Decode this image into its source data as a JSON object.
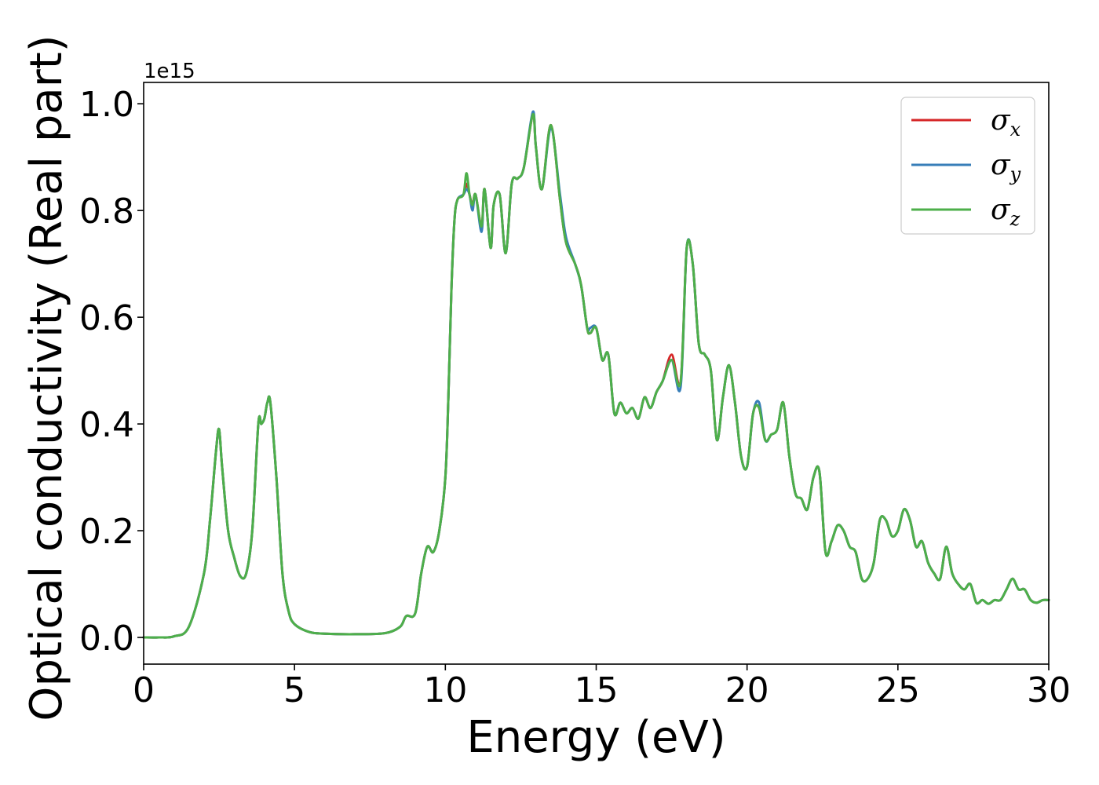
{
  "chart_data": {
    "type": "line",
    "xlabel": "Energy (eV)",
    "ylabel": "Optical conductivity (Real part)",
    "y_offset_label": "1e15",
    "xlim": [
      0,
      30
    ],
    "ylim": [
      -0.05,
      1.04
    ],
    "x_ticks": [
      0,
      5,
      10,
      15,
      20,
      25,
      30
    ],
    "x_tick_labels": [
      "0",
      "5",
      "10",
      "15",
      "20",
      "25",
      "30"
    ],
    "y_ticks": [
      0.0,
      0.2,
      0.4,
      0.6,
      0.8,
      1.0
    ],
    "y_tick_labels": [
      "0.0",
      "0.2",
      "0.4",
      "0.6",
      "0.8",
      "1.0"
    ],
    "grid": false,
    "legend_position": "top-right",
    "x": [
      0,
      0.5,
      1.0,
      1.5,
      2.0,
      2.2,
      2.4,
      2.5,
      2.6,
      2.8,
      3.0,
      3.2,
      3.4,
      3.6,
      3.8,
      3.9,
      4.0,
      4.1,
      4.2,
      4.4,
      4.6,
      4.8,
      5.0,
      5.5,
      6.0,
      7.0,
      8.0,
      8.5,
      8.7,
      9.0,
      9.2,
      9.4,
      9.6,
      9.8,
      10.0,
      10.1,
      10.2,
      10.3,
      10.4,
      10.6,
      10.7,
      10.8,
      10.9,
      11.0,
      11.2,
      11.3,
      11.5,
      11.6,
      11.8,
      12.0,
      12.2,
      12.4,
      12.6,
      12.9,
      13.0,
      13.2,
      13.5,
      13.8,
      14.0,
      14.3,
      14.5,
      14.7,
      14.8,
      15.0,
      15.2,
      15.4,
      15.6,
      15.8,
      16.0,
      16.2,
      16.4,
      16.6,
      16.8,
      17.0,
      17.2,
      17.5,
      17.8,
      18.0,
      18.2,
      18.4,
      18.6,
      18.8,
      19.0,
      19.2,
      19.4,
      19.6,
      19.8,
      20.0,
      20.2,
      20.4,
      20.6,
      20.8,
      21.0,
      21.2,
      21.4,
      21.6,
      21.8,
      22.0,
      22.2,
      22.4,
      22.6,
      22.8,
      23.0,
      23.2,
      23.4,
      23.6,
      23.8,
      24.0,
      24.2,
      24.4,
      24.6,
      24.8,
      25.0,
      25.2,
      25.4,
      25.6,
      25.8,
      26.0,
      26.2,
      26.4,
      26.6,
      26.8,
      27.0,
      27.2,
      27.4,
      27.6,
      27.8,
      28.0,
      28.2,
      28.4,
      28.6,
      28.8,
      29.0,
      29.2,
      29.4,
      29.6,
      29.8,
      30.0
    ],
    "series": [
      {
        "name": "σx",
        "color": "#d62728",
        "values": [
          0.0,
          0.0,
          0.002,
          0.02,
          0.12,
          0.22,
          0.35,
          0.39,
          0.32,
          0.2,
          0.15,
          0.115,
          0.12,
          0.2,
          0.4,
          0.4,
          0.41,
          0.44,
          0.44,
          0.3,
          0.12,
          0.05,
          0.025,
          0.01,
          0.007,
          0.006,
          0.008,
          0.02,
          0.04,
          0.045,
          0.12,
          0.17,
          0.16,
          0.2,
          0.3,
          0.45,
          0.65,
          0.78,
          0.82,
          0.83,
          0.85,
          0.83,
          0.81,
          0.83,
          0.77,
          0.84,
          0.73,
          0.81,
          0.83,
          0.72,
          0.85,
          0.86,
          0.88,
          0.98,
          0.92,
          0.84,
          0.96,
          0.82,
          0.74,
          0.7,
          0.66,
          0.58,
          0.57,
          0.58,
          0.52,
          0.53,
          0.42,
          0.44,
          0.42,
          0.43,
          0.41,
          0.45,
          0.43,
          0.46,
          0.48,
          0.53,
          0.48,
          0.73,
          0.7,
          0.55,
          0.53,
          0.5,
          0.37,
          0.45,
          0.51,
          0.44,
          0.34,
          0.32,
          0.42,
          0.43,
          0.37,
          0.38,
          0.39,
          0.44,
          0.34,
          0.27,
          0.26,
          0.24,
          0.3,
          0.31,
          0.16,
          0.18,
          0.21,
          0.2,
          0.17,
          0.16,
          0.11,
          0.11,
          0.14,
          0.22,
          0.22,
          0.19,
          0.2,
          0.24,
          0.22,
          0.17,
          0.18,
          0.14,
          0.12,
          0.11,
          0.17,
          0.12,
          0.1,
          0.09,
          0.1,
          0.065,
          0.07,
          0.063,
          0.07,
          0.07,
          0.09,
          0.11,
          0.09,
          0.09,
          0.07,
          0.065,
          0.07,
          0.07
        ]
      },
      {
        "name": "σy",
        "color": "#377eb8",
        "values": [
          0.0,
          0.0,
          0.002,
          0.02,
          0.12,
          0.22,
          0.35,
          0.39,
          0.32,
          0.2,
          0.15,
          0.115,
          0.12,
          0.2,
          0.4,
          0.4,
          0.41,
          0.44,
          0.44,
          0.3,
          0.12,
          0.05,
          0.025,
          0.01,
          0.007,
          0.006,
          0.008,
          0.02,
          0.04,
          0.045,
          0.12,
          0.17,
          0.16,
          0.2,
          0.3,
          0.45,
          0.65,
          0.78,
          0.82,
          0.83,
          0.84,
          0.83,
          0.8,
          0.83,
          0.76,
          0.84,
          0.73,
          0.81,
          0.83,
          0.72,
          0.85,
          0.86,
          0.88,
          0.985,
          0.92,
          0.84,
          0.955,
          0.83,
          0.75,
          0.7,
          0.66,
          0.58,
          0.58,
          0.58,
          0.52,
          0.53,
          0.42,
          0.44,
          0.42,
          0.43,
          0.41,
          0.45,
          0.43,
          0.46,
          0.48,
          0.52,
          0.47,
          0.73,
          0.7,
          0.55,
          0.53,
          0.5,
          0.37,
          0.45,
          0.51,
          0.44,
          0.34,
          0.32,
          0.42,
          0.44,
          0.37,
          0.38,
          0.39,
          0.44,
          0.34,
          0.27,
          0.26,
          0.24,
          0.3,
          0.31,
          0.16,
          0.18,
          0.21,
          0.2,
          0.17,
          0.16,
          0.11,
          0.11,
          0.14,
          0.22,
          0.22,
          0.19,
          0.2,
          0.24,
          0.22,
          0.17,
          0.18,
          0.14,
          0.12,
          0.11,
          0.17,
          0.12,
          0.1,
          0.09,
          0.1,
          0.065,
          0.07,
          0.063,
          0.07,
          0.07,
          0.09,
          0.11,
          0.09,
          0.09,
          0.07,
          0.065,
          0.07,
          0.07
        ]
      },
      {
        "name": "σz",
        "color": "#4daf4a",
        "values": [
          0.0,
          0.0,
          0.002,
          0.02,
          0.12,
          0.22,
          0.35,
          0.39,
          0.32,
          0.2,
          0.15,
          0.115,
          0.12,
          0.2,
          0.4,
          0.4,
          0.41,
          0.44,
          0.44,
          0.3,
          0.12,
          0.05,
          0.025,
          0.01,
          0.007,
          0.006,
          0.008,
          0.02,
          0.04,
          0.045,
          0.12,
          0.17,
          0.16,
          0.2,
          0.3,
          0.45,
          0.65,
          0.78,
          0.82,
          0.83,
          0.87,
          0.83,
          0.81,
          0.83,
          0.77,
          0.84,
          0.73,
          0.81,
          0.83,
          0.72,
          0.85,
          0.86,
          0.88,
          0.98,
          0.92,
          0.84,
          0.96,
          0.82,
          0.74,
          0.7,
          0.66,
          0.58,
          0.57,
          0.58,
          0.52,
          0.53,
          0.42,
          0.44,
          0.42,
          0.43,
          0.41,
          0.45,
          0.43,
          0.46,
          0.48,
          0.52,
          0.48,
          0.73,
          0.7,
          0.55,
          0.53,
          0.5,
          0.37,
          0.45,
          0.51,
          0.44,
          0.34,
          0.32,
          0.42,
          0.43,
          0.37,
          0.38,
          0.39,
          0.44,
          0.34,
          0.27,
          0.26,
          0.24,
          0.3,
          0.31,
          0.16,
          0.18,
          0.21,
          0.2,
          0.17,
          0.16,
          0.11,
          0.11,
          0.14,
          0.22,
          0.22,
          0.19,
          0.2,
          0.24,
          0.22,
          0.17,
          0.18,
          0.14,
          0.12,
          0.11,
          0.17,
          0.12,
          0.1,
          0.09,
          0.1,
          0.065,
          0.07,
          0.063,
          0.07,
          0.07,
          0.09,
          0.11,
          0.09,
          0.09,
          0.07,
          0.065,
          0.07,
          0.07
        ]
      }
    ],
    "legend": [
      {
        "symbol": "σ",
        "sub": "x",
        "color": "#d62728"
      },
      {
        "symbol": "σ",
        "sub": "y",
        "color": "#377eb8"
      },
      {
        "symbol": "σ",
        "sub": "z",
        "color": "#4daf4a"
      }
    ]
  }
}
